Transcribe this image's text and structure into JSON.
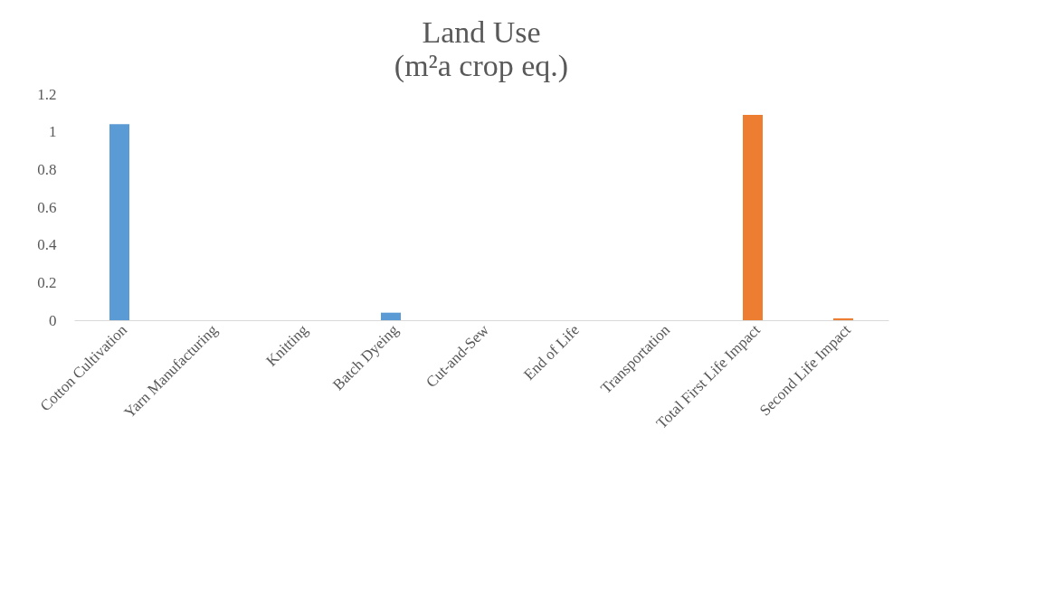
{
  "chart_data": {
    "type": "bar",
    "title": "Land Use",
    "subtitle": "(m²a crop eq.)",
    "categories": [
      "Cotton Cultivation",
      "Yarn Manufacturing",
      "Knitting",
      "Batch Dyeing",
      "Cut-and-Sew",
      "End of Life",
      "Transportation",
      "Total First Life Impact",
      "Second Life Impact"
    ],
    "values": [
      1.04,
      0,
      0,
      0.04,
      0,
      0,
      0,
      1.09,
      0.01
    ],
    "colors": [
      "#5b9bd5",
      "#5b9bd5",
      "#5b9bd5",
      "#5b9bd5",
      "#5b9bd5",
      "#5b9bd5",
      "#5b9bd5",
      "#ed7d31",
      "#ed7d31"
    ],
    "ylim": [
      0,
      1.2
    ],
    "yticks": [
      0,
      0.2,
      0.4,
      0.6,
      0.8,
      1,
      1.2
    ],
    "grid": false
  }
}
